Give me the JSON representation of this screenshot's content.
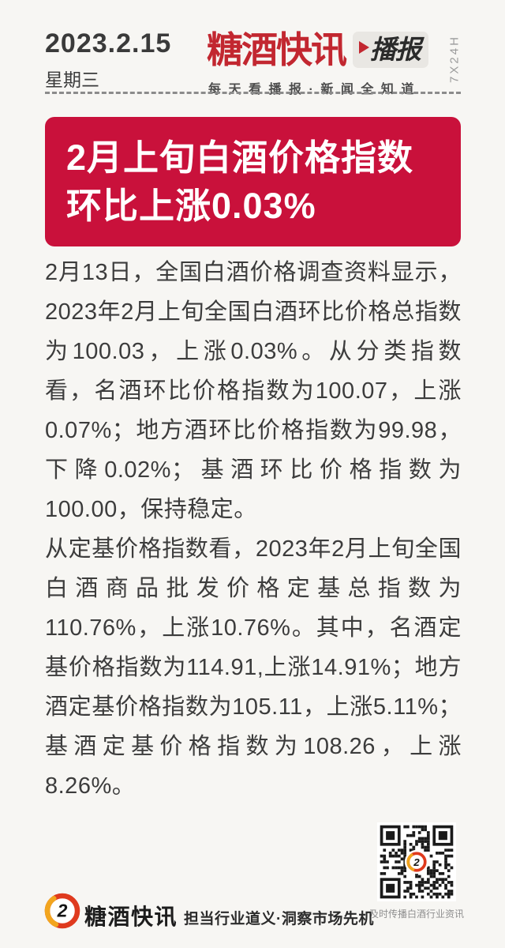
{
  "colors": {
    "page_bg": "#F7F6F3",
    "accent_red": "#C9113B",
    "logo_red": "#C22730",
    "text_dark": "#3C3C3C",
    "muted_gray": "#9B9B9B",
    "badge_bg": "#E9E7E3",
    "badge_text": "#2B2B2B",
    "footer_orange": "#F2A51E",
    "footer_ring_red": "#DF3A1E",
    "ink": "#1D1D1D"
  },
  "header": {
    "date": "2023.2.15",
    "weekday": "星期三",
    "brand": "糖酒快讯",
    "badge": "播报",
    "tagline": "每天看播报·新闻全知道",
    "vertical_label": "7X24H"
  },
  "headline": {
    "line1": "2月上旬白酒价格指数",
    "line2": "环比上涨0.03%"
  },
  "article": {
    "p1": "2月13日，全国白酒价格调查资料显示，2023年2月上旬全国白酒环比价格总指数为100.03，上涨0.03%。从分类指数看，名酒环比价格指数为100.07，上涨0.07%；地方酒环比价格指数为99.98，下降0.02%；基酒环比价格指数为100.00，保持稳定。",
    "p2": "从定基价格指数看，2023年2月上旬全国白酒商品批发价格定基总指数为110.76%，上涨10.76%。其中，名酒定基价格指数为114.91,上涨14.91%；地方酒定基价格指数为105.11，上涨5.11%；基酒定基价格指数为108.26，上涨8.26%。"
  },
  "footer": {
    "brand": "糖酒快讯",
    "slogan": "担当行业道义·洞察市场先机",
    "qr_caption": "及时传播白酒行业资讯",
    "logo_glyph": "2"
  }
}
